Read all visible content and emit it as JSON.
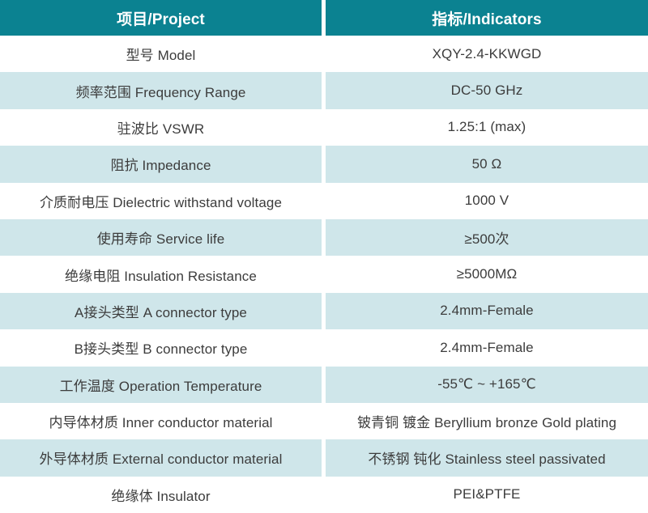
{
  "theme": {
    "header_bg": "#0B8291",
    "header_text": "#FFFFFF",
    "row_alt_bg": "#CFE6EA",
    "row_bg": "#FFFFFF",
    "text_color": "#3C3C3C",
    "divider_color": "#FFFFFF"
  },
  "table": {
    "header": {
      "project": "项目/Project",
      "indicators": "指标/Indicators"
    },
    "rows": [
      {
        "project": "型号 Model",
        "indicator": "XQY-2.4-KKWGD"
      },
      {
        "project": "频率范围 Frequency Range",
        "indicator": "DC-50 GHz"
      },
      {
        "project": "驻波比 VSWR",
        "indicator": "1.25:1 (max)"
      },
      {
        "project": "阻抗 Impedance",
        "indicator": "50 Ω"
      },
      {
        "project": "介质耐电压 Dielectric withstand voltage",
        "indicator": "1000 V"
      },
      {
        "project": "使用寿命 Service life",
        "indicator": "≥500次"
      },
      {
        "project": "绝缘电阻 Insulation Resistance",
        "indicator": "≥5000MΩ"
      },
      {
        "project": "A接头类型 A connector type",
        "indicator": "2.4mm-Female"
      },
      {
        "project": "B接头类型 B connector type",
        "indicator": "2.4mm-Female"
      },
      {
        "project": "工作温度 Operation Temperature",
        "indicator": "-55℃ ~ +165℃"
      },
      {
        "project": "内导体材质 Inner conductor material",
        "indicator": "铍青铜 镀金 Beryllium bronze Gold plating"
      },
      {
        "project": "外导体材质 External conductor material",
        "indicator": "不锈钢 钝化 Stainless steel passivated"
      },
      {
        "project": "绝缘体 Insulator",
        "indicator": "PEI&PTFE"
      }
    ]
  }
}
